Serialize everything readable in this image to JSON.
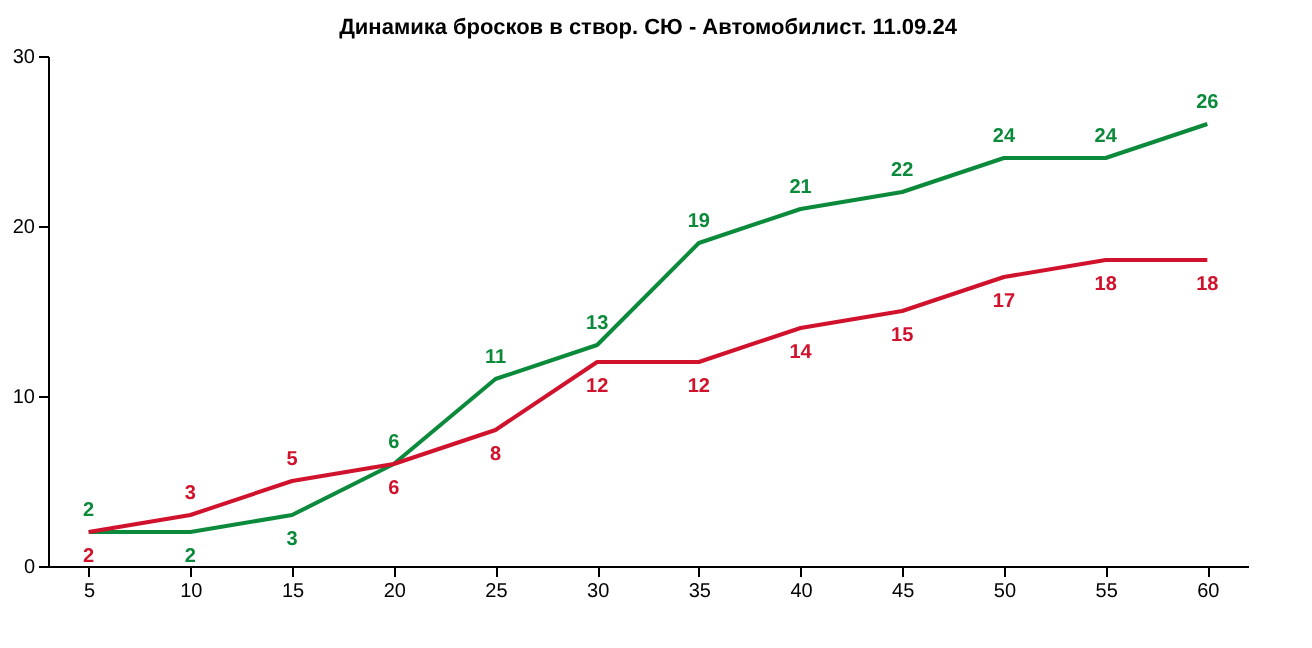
{
  "chart_data": {
    "type": "line",
    "title": "Динамика бросков в створ. СЮ - Автомобилист. 11.09.24",
    "x": [
      5,
      10,
      15,
      20,
      25,
      30,
      35,
      40,
      45,
      50,
      55,
      60
    ],
    "series": [
      {
        "color": "#0a8a3a",
        "values": [
          2,
          2,
          3,
          6,
          11,
          13,
          19,
          21,
          22,
          24,
          24,
          26
        ]
      },
      {
        "color": "#d0122c",
        "values": [
          2,
          3,
          5,
          6,
          8,
          12,
          12,
          14,
          15,
          17,
          18,
          18
        ]
      }
    ],
    "xlim": [
      3,
      62
    ],
    "xticks": [
      5,
      10,
      15,
      20,
      25,
      30,
      35,
      40,
      45,
      50,
      55,
      60
    ],
    "ylim": [
      0,
      30
    ],
    "yticks": [
      0,
      10,
      20,
      30
    ],
    "grid": false,
    "marker": "none",
    "line_style": "solid",
    "data_labels": true
  }
}
